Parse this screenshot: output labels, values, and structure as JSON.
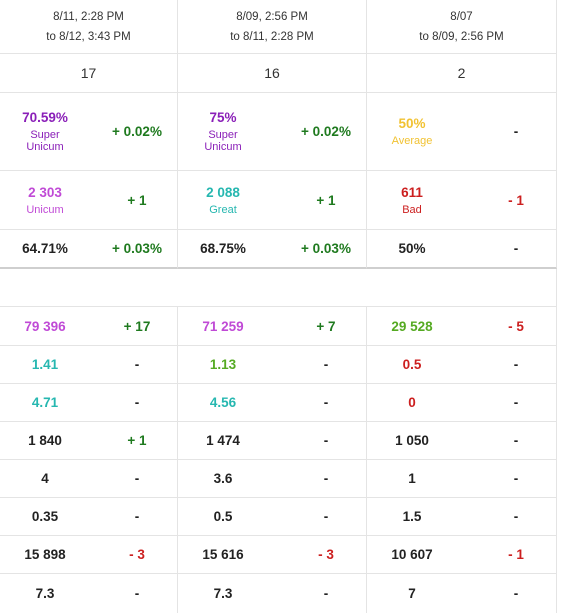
{
  "columns": [
    {
      "date_line1": "8/11, 2:28 PM",
      "date_line2": "to 8/12, 3:43 PM",
      "count": "17"
    },
    {
      "date_line1": "8/09, 2:56 PM",
      "date_line2": "to 8/11, 2:28 PM",
      "count": "16"
    },
    {
      "date_line1": "8/07",
      "date_line2": "to 8/09, 2:56 PM",
      "count": "2"
    }
  ],
  "rows": [
    [
      {
        "value": "70.59%",
        "label": "Super Unicum",
        "label_l1": "Super",
        "label_l2": "Unicum",
        "delta": "+ 0.02%",
        "value_color": "#8a1fb8",
        "delta_color": "#1f7a1f"
      },
      {
        "value": "75%",
        "label_l1": "Super",
        "label_l2": "Unicum",
        "delta": "+ 0.02%",
        "value_color": "#8a1fb8",
        "delta_color": "#1f7a1f"
      },
      {
        "value": "50%",
        "label_l1": "Average",
        "label_l2": "",
        "delta": "-",
        "value_color": "#f1c232",
        "delta_color": "#222222"
      }
    ],
    [
      {
        "value": "2 303",
        "label_l1": "Unicum",
        "label_l2": "",
        "delta": "+ 1",
        "value_color": "#c04ad6",
        "delta_color": "#1f7a1f"
      },
      {
        "value": "2 088",
        "label_l1": "Great",
        "label_l2": "",
        "delta": "+ 1",
        "value_color": "#26b7b0",
        "delta_color": "#1f7a1f"
      },
      {
        "value": "611",
        "label_l1": "Bad",
        "label_l2": "",
        "delta": "- 1",
        "value_color": "#cc1f1f",
        "delta_color": "#cc1f1f"
      }
    ],
    [
      {
        "value": "64.71%",
        "delta": "+ 0.03%",
        "value_color": "#222222",
        "delta_color": "#1f7a1f"
      },
      {
        "value": "68.75%",
        "delta": "+ 0.03%",
        "value_color": "#222222",
        "delta_color": "#1f7a1f"
      },
      {
        "value": "50%",
        "delta": "-",
        "value_color": "#222222",
        "delta_color": "#222222"
      }
    ],
    [
      {
        "value": "79 396",
        "delta": "+ 17",
        "value_color": "#c04ad6",
        "delta_color": "#1f7a1f"
      },
      {
        "value": "71 259",
        "delta": "+ 7",
        "value_color": "#c04ad6",
        "delta_color": "#1f7a1f"
      },
      {
        "value": "29 528",
        "delta": "- 5",
        "value_color": "#55aa22",
        "delta_color": "#cc1f1f"
      }
    ],
    [
      {
        "value": "1.41",
        "delta": "-",
        "value_color": "#26b7b0",
        "delta_color": "#222222"
      },
      {
        "value": "1.13",
        "delta": "-",
        "value_color": "#55aa22",
        "delta_color": "#222222"
      },
      {
        "value": "0.5",
        "delta": "-",
        "value_color": "#cc1f1f",
        "delta_color": "#222222"
      }
    ],
    [
      {
        "value": "4.71",
        "delta": "-",
        "value_color": "#26b7b0",
        "delta_color": "#222222"
      },
      {
        "value": "4.56",
        "delta": "-",
        "value_color": "#26b7b0",
        "delta_color": "#222222"
      },
      {
        "value": "0",
        "delta": "-",
        "value_color": "#cc1f1f",
        "delta_color": "#222222"
      }
    ],
    [
      {
        "value": "1 840",
        "delta": "+ 1",
        "value_color": "#222222",
        "delta_color": "#1f7a1f"
      },
      {
        "value": "1 474",
        "delta": "-",
        "value_color": "#222222",
        "delta_color": "#222222"
      },
      {
        "value": "1 050",
        "delta": "-",
        "value_color": "#222222",
        "delta_color": "#222222"
      }
    ],
    [
      {
        "value": "4",
        "delta": "-",
        "value_color": "#222222",
        "delta_color": "#222222"
      },
      {
        "value": "3.6",
        "delta": "-",
        "value_color": "#222222",
        "delta_color": "#222222"
      },
      {
        "value": "1",
        "delta": "-",
        "value_color": "#222222",
        "delta_color": "#222222"
      }
    ],
    [
      {
        "value": "0.35",
        "delta": "-",
        "value_color": "#222222",
        "delta_color": "#222222"
      },
      {
        "value": "0.5",
        "delta": "-",
        "value_color": "#222222",
        "delta_color": "#222222"
      },
      {
        "value": "1.5",
        "delta": "-",
        "value_color": "#222222",
        "delta_color": "#222222"
      }
    ],
    [
      {
        "value": "15 898",
        "delta": "- 3",
        "value_color": "#222222",
        "delta_color": "#cc1f1f"
      },
      {
        "value": "15 616",
        "delta": "- 3",
        "value_color": "#222222",
        "delta_color": "#cc1f1f"
      },
      {
        "value": "10 607",
        "delta": "- 1",
        "value_color": "#222222",
        "delta_color": "#cc1f1f"
      }
    ],
    [
      {
        "value": "7.3",
        "delta": "-",
        "value_color": "#222222",
        "delta_color": "#222222"
      },
      {
        "value": "7.3",
        "delta": "-",
        "value_color": "#222222",
        "delta_color": "#222222"
      },
      {
        "value": "7",
        "delta": "-",
        "value_color": "#222222",
        "delta_color": "#222222"
      }
    ]
  ]
}
